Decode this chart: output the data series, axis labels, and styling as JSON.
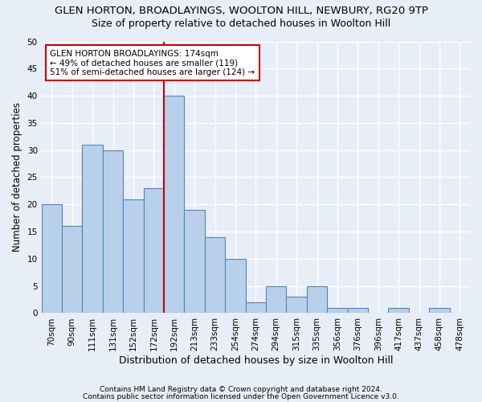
{
  "title1": "GLEN HORTON, BROADLAYINGS, WOOLTON HILL, NEWBURY, RG20 9TP",
  "title2": "Size of property relative to detached houses in Woolton Hill",
  "xlabel": "Distribution of detached houses by size in Woolton Hill",
  "ylabel": "Number of detached properties",
  "footer1": "Contains HM Land Registry data © Crown copyright and database right 2024.",
  "footer2": "Contains public sector information licensed under the Open Government Licence v3.0.",
  "categories": [
    "70sqm",
    "90sqm",
    "111sqm",
    "131sqm",
    "152sqm",
    "172sqm",
    "192sqm",
    "213sqm",
    "233sqm",
    "254sqm",
    "274sqm",
    "294sqm",
    "315sqm",
    "335sqm",
    "356sqm",
    "376sqm",
    "396sqm",
    "417sqm",
    "437sqm",
    "458sqm",
    "478sqm"
  ],
  "values": [
    20,
    16,
    31,
    30,
    21,
    23,
    40,
    19,
    14,
    10,
    2,
    5,
    3,
    5,
    1,
    1,
    0,
    1,
    0,
    1,
    0
  ],
  "bar_color": "#b8d0ea",
  "bar_edge_color": "#5585b5",
  "ylim": [
    0,
    50
  ],
  "yticks": [
    0,
    5,
    10,
    15,
    20,
    25,
    30,
    35,
    40,
    45,
    50
  ],
  "background_color": "#e8eef8",
  "grid_color": "#ffffff",
  "annotation_box_color": "#ffffff",
  "annotation_box_edge": "#cc0000",
  "vline_color": "#cc0000",
  "vline_x": 5.5,
  "annotation_line1": "GLEN HORTON BROADLAYINGS: 174sqm",
  "annotation_line2": "← 49% of detached houses are smaller (119)",
  "annotation_line3": "51% of semi-detached houses are larger (124) →",
  "title1_fontsize": 9.5,
  "title2_fontsize": 9,
  "xlabel_fontsize": 9,
  "ylabel_fontsize": 8.5,
  "tick_fontsize": 7.5,
  "annotation_fontsize": 7.5,
  "footer_fontsize": 6.5
}
